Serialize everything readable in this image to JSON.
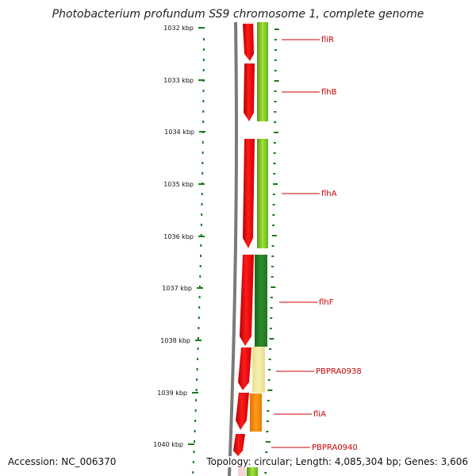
{
  "title": "Photobacterium profundum SS9 chromosome 1, complete genome",
  "accession_label": "Accession: NC_006370",
  "summary_label": "Topology: circular; Length: 4,085,304 bp; Genes: 3,606",
  "ticks": [
    {
      "kbp": 1032,
      "label": "1032 kbp"
    },
    {
      "kbp": 1033,
      "label": "1033 kbp"
    },
    {
      "kbp": 1034,
      "label": "1034 kbp"
    },
    {
      "kbp": 1035,
      "label": "1035 kbp"
    },
    {
      "kbp": 1036,
      "label": "1036 kbp"
    },
    {
      "kbp": 1037,
      "label": "1037 kbp"
    },
    {
      "kbp": 1038,
      "label": "1038 kbp"
    },
    {
      "kbp": 1039,
      "label": "1039 kbp"
    },
    {
      "kbp": 1040,
      "label": "1040 kbp"
    }
  ],
  "gene_labels": [
    {
      "name": "fliR",
      "color": "#cc0000"
    },
    {
      "name": "flhB",
      "color": "#cc0000"
    },
    {
      "name": "flhA",
      "color": "#cc0000"
    },
    {
      "name": "flhF",
      "color": "#cc0000"
    },
    {
      "name": "PBPRA0938",
      "color": "#cc0000"
    },
    {
      "name": "fliA",
      "color": "#cc0000"
    },
    {
      "name": "PBPRA0940",
      "color": "#cc0000"
    }
  ],
  "colors": {
    "tick": "#1a7a1a",
    "backbone": "#7a7a7a",
    "cds_red": "#ff0000",
    "label_red": "#cc0000"
  }
}
